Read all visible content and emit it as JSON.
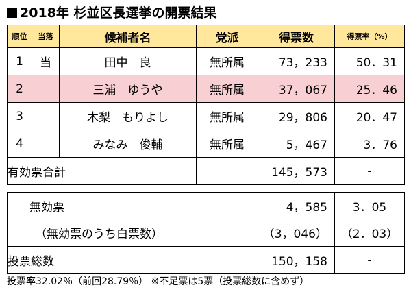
{
  "title": "2018年 杉並区長選挙の開票結果",
  "headers": {
    "rank": "順位",
    "elected": "当落",
    "candidate": "候補者名",
    "party": "党派",
    "votes": "得票数",
    "rate": "得票率（%）"
  },
  "candidates": [
    {
      "rank": "1",
      "elected": "当",
      "name": "田中　良",
      "party": "無所属",
      "votes": "73，233",
      "rate": "50．31"
    },
    {
      "rank": "2",
      "elected": "",
      "name": "三浦　ゆうや",
      "party": "無所属",
      "votes": "37，067",
      "rate": "25．46"
    },
    {
      "rank": "3",
      "elected": "",
      "name": "木梨　もりよし",
      "party": "無所属",
      "votes": "29，806",
      "rate": "20．47"
    },
    {
      "rank": "4",
      "elected": "",
      "name": "みなみ　俊輔",
      "party": "無所属",
      "votes": "5，467",
      "rate": "3．76"
    }
  ],
  "valid_total": {
    "label": "有効票合計",
    "votes": "145，573",
    "rate": "-"
  },
  "invalid": {
    "label": "無効票",
    "votes": "4，585",
    "rate": "3．05"
  },
  "blank": {
    "label": "（無効票のうち白票数）",
    "votes": "（3，046）",
    "rate": "（2．03）"
  },
  "total": {
    "label": "投票総数",
    "votes": "150，158",
    "rate": "-"
  },
  "footer": "投票率32.02％（前回28.79％） ※不足票は5票（投票総数に含めず）"
}
